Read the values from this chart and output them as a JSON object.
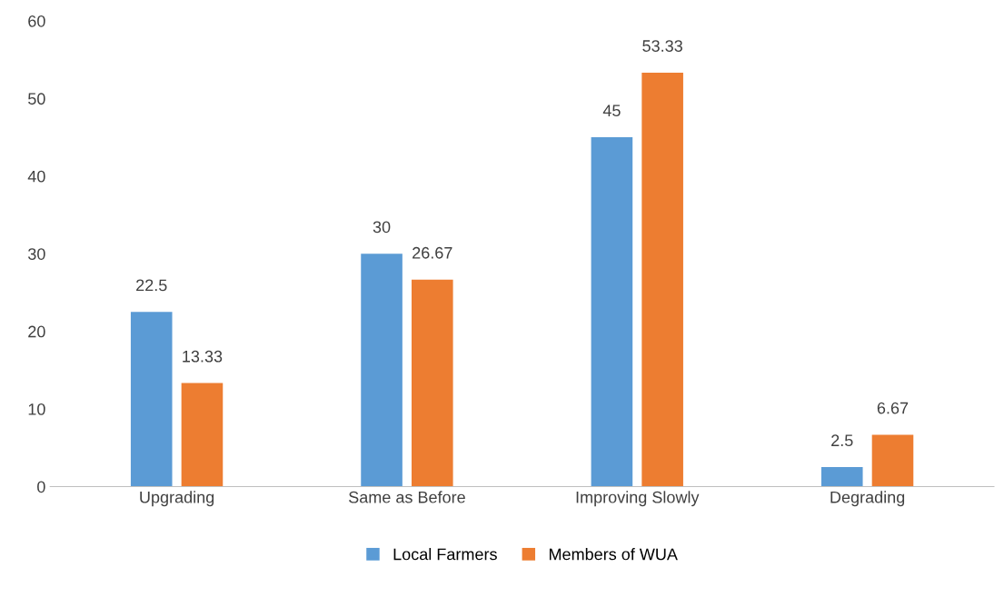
{
  "chart_data": {
    "type": "bar",
    "categories": [
      "Upgrading",
      "Same as Before",
      "Improving Slowly",
      "Degrading"
    ],
    "series": [
      {
        "name": "Local Farmers",
        "color": "#5b9bd5",
        "values": [
          22.5,
          30,
          45,
          2.5
        ]
      },
      {
        "name": "Members of WUA",
        "color": "#ed7d31",
        "values": [
          13.33,
          26.67,
          53.33,
          6.67
        ]
      }
    ],
    "ylim": [
      0,
      60
    ],
    "yticks": [
      0,
      10,
      20,
      30,
      40,
      50,
      60
    ],
    "grid": false,
    "legend": "bottom",
    "data_labels": true
  }
}
